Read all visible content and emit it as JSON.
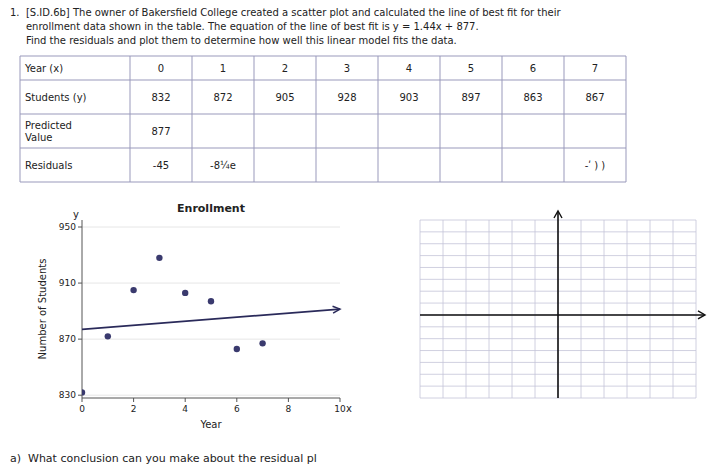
{
  "chart_data": [
    {
      "type": "table",
      "title": "1.  [S.ID.6b] The owner of Bakersfield College created a scatter plot and calculated the line of best fit for their",
      "annotations": [
        "     enrollment data shown in the table. The equation of the line of best fit is y = 1.44x + 877.",
        "     Find the residuals and plot them to determine how well this linear model fits the data."
      ],
      "columns": [
        "Year (x)",
        "0",
        "1",
        "2",
        "3",
        "4",
        "5",
        "6",
        "7"
      ],
      "rows": [
        {
          "label": "Students (y)",
          "values": [
            "832",
            "872",
            "905",
            "928",
            "903",
            "897",
            "863",
            "867"
          ]
        },
        {
          "label": "Predicted\nValue",
          "values": [
            "877",
            null,
            null,
            null,
            null,
            null,
            null,
            null
          ]
        },
        {
          "label": "Residuals",
          "values": [
            "-45",
            "-8¼e",
            null,
            null,
            null,
            null,
            null,
            "-ʹ ) )"
          ]
        }
      ]
    },
    {
      "type": "scatter",
      "title": "Enrollment",
      "x_label": "Year",
      "y_label": "Number of Students",
      "annotations": [
        "y",
        "x"
      ],
      "series": [
        {
          "type": "scatter",
          "color": "#3a3a6e",
          "x": [
            0,
            1,
            2,
            3,
            4,
            5,
            6,
            7
          ],
          "values": [
            832,
            872,
            905,
            928,
            903,
            897,
            863,
            867
          ]
        },
        {
          "type": "line",
          "color": "#2a2a5a",
          "marker": "arrow",
          "x": [
            0,
            10
          ],
          "values": [
            877,
            891.4
          ]
        }
      ],
      "xlim": [
        0,
        10
      ],
      "ylim": [
        828,
        955
      ],
      "xticks": [
        0,
        2,
        4,
        6,
        8,
        10
      ],
      "yticks": [
        830,
        870,
        910,
        950
      ]
    },
    {
      "type": "grid",
      "annotations": [
        "a)  What conclusion can you make about the residual pl"
      ],
      "xlim": [
        0,
        12
      ],
      "ylim": [
        0,
        15
      ],
      "xticks": [
        0,
        1,
        2,
        3,
        4,
        5,
        6,
        7,
        8,
        9,
        10,
        11,
        12
      ],
      "yticks": [
        0,
        1,
        2,
        3,
        4,
        5,
        6,
        7,
        8,
        9,
        10,
        11,
        12,
        13,
        14,
        15
      ],
      "grid": true,
      "tick_labels": false
    }
  ]
}
